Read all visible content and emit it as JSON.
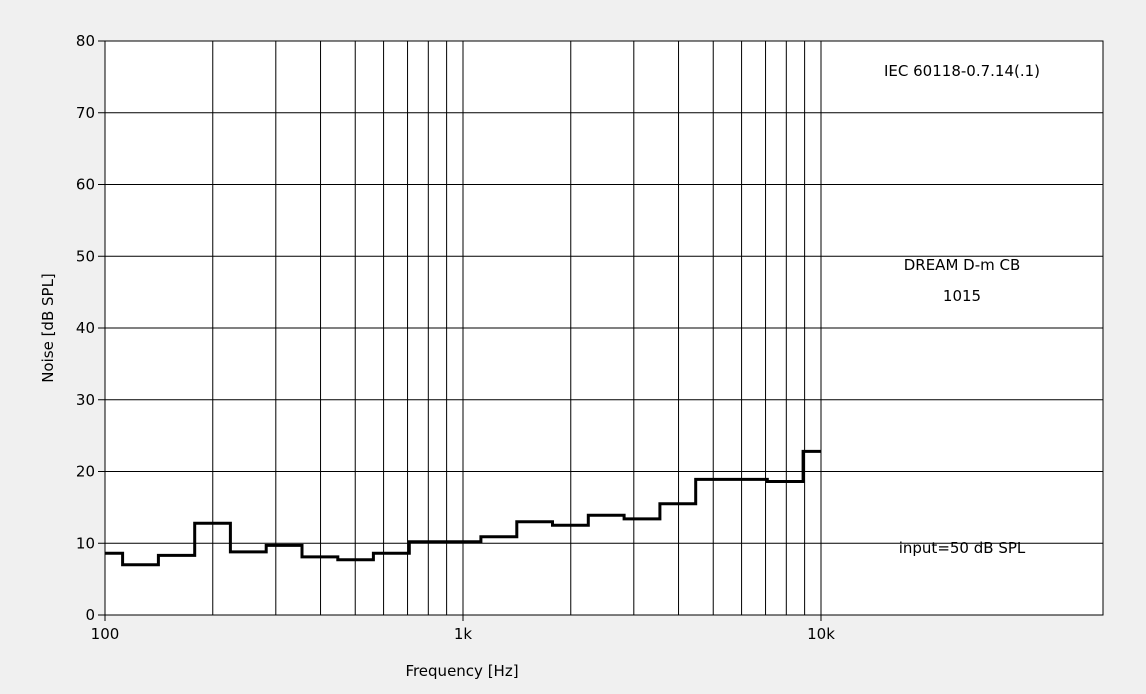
{
  "chart_data": {
    "type": "line",
    "line_style": "step",
    "xlabel": "Frequency [Hz]",
    "ylabel": "Noise [dB SPL]",
    "xscale": "log",
    "xlim": [
      100,
      60000
    ],
    "ylim": [
      0,
      80
    ],
    "y_ticks": [
      0,
      10,
      20,
      30,
      40,
      50,
      60,
      70,
      80
    ],
    "y_tick_labels": [
      "0",
      "10",
      "20",
      "30",
      "40",
      "50",
      "60",
      "70",
      "80"
    ],
    "x_tick_labels": [
      {
        "value": 100,
        "label": "100"
      },
      {
        "value": 1000,
        "label": "1k"
      },
      {
        "value": 10000,
        "label": "10k"
      }
    ],
    "grid": true,
    "annotations": {
      "standard": "IEC 60118-0.7.14(.1)",
      "device_name": "DREAM D-m CB",
      "device_id": "1015",
      "input": "input=50 dB SPL"
    },
    "series": [
      {
        "steps": [
          {
            "f_low": 100,
            "f_high": 112,
            "value": 8.6
          },
          {
            "f_low": 112,
            "f_high": 141,
            "value": 7.0
          },
          {
            "f_low": 141,
            "f_high": 178,
            "value": 8.3
          },
          {
            "f_low": 178,
            "f_high": 224,
            "value": 12.8
          },
          {
            "f_low": 224,
            "f_high": 282,
            "value": 8.8
          },
          {
            "f_low": 282,
            "f_high": 355,
            "value": 9.7
          },
          {
            "f_low": 355,
            "f_high": 447,
            "value": 8.1
          },
          {
            "f_low": 447,
            "f_high": 562,
            "value": 7.7
          },
          {
            "f_low": 562,
            "f_high": 708,
            "value": 8.6
          },
          {
            "f_low": 708,
            "f_high": 891,
            "value": 10.2
          },
          {
            "f_low": 891,
            "f_high": 1122,
            "value": 10.2
          },
          {
            "f_low": 1122,
            "f_high": 1413,
            "value": 10.9
          },
          {
            "f_low": 1413,
            "f_high": 1778,
            "value": 13.0
          },
          {
            "f_low": 1778,
            "f_high": 2239,
            "value": 12.5
          },
          {
            "f_low": 2239,
            "f_high": 2818,
            "value": 13.9
          },
          {
            "f_low": 2818,
            "f_high": 3548,
            "value": 13.4
          },
          {
            "f_low": 3548,
            "f_high": 4467,
            "value": 15.5
          },
          {
            "f_low": 4467,
            "f_high": 5623,
            "value": 18.9
          },
          {
            "f_low": 5623,
            "f_high": 7079,
            "value": 18.9
          },
          {
            "f_low": 7079,
            "f_high": 8913,
            "value": 18.6
          },
          {
            "f_low": 8913,
            "f_high": 10000,
            "value": 22.8
          }
        ]
      }
    ],
    "colors": {
      "background": "#f0f0f0",
      "plot_area": "#ffffff",
      "grid": "#000000",
      "line": "#000000"
    }
  }
}
